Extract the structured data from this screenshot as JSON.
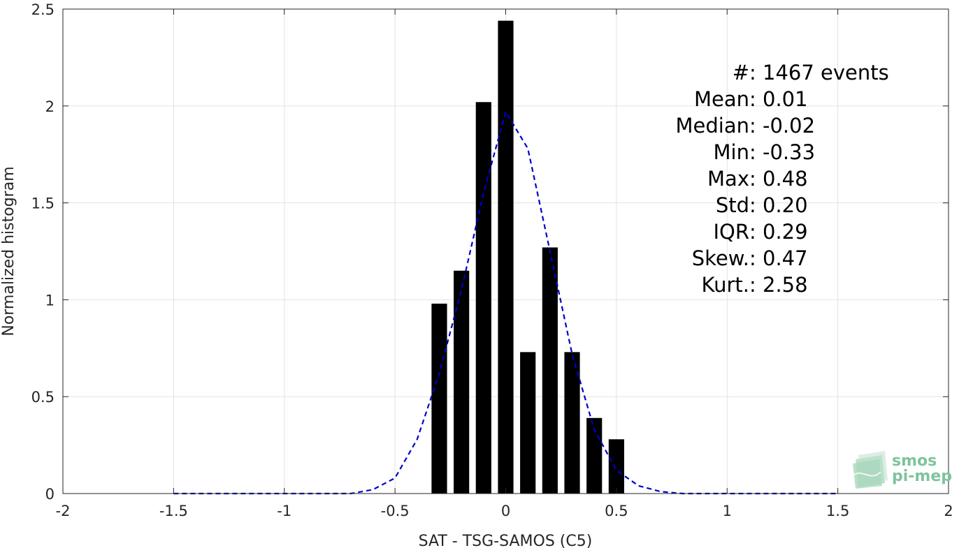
{
  "chart_data": {
    "type": "bar",
    "title": "",
    "xlabel": "SAT - TSG-SAMOS (C5)",
    "ylabel": "Normalized histogram",
    "xlim": [
      -2,
      2
    ],
    "ylim": [
      0,
      2.5
    ],
    "grid": true,
    "x_ticks": [
      -2,
      -1.5,
      -1,
      -0.5,
      0,
      0.5,
      1,
      1.5,
      2
    ],
    "x_tick_labels": [
      "-2",
      "-1.5",
      "-1",
      "-0.5",
      "0",
      "0.5",
      "1",
      "1.5",
      "2"
    ],
    "y_ticks": [
      0,
      0.5,
      1,
      1.5,
      2,
      2.5
    ],
    "y_tick_labels": [
      "0",
      "0.5",
      "1",
      "1.5",
      "2",
      "2.5"
    ],
    "bar_color": "#000000",
    "bar_width": 0.07,
    "bars": {
      "x": [
        -0.3,
        -0.2,
        -0.1,
        0.0,
        0.1,
        0.2,
        0.3,
        0.4,
        0.5
      ],
      "values": [
        0.98,
        1.15,
        2.02,
        2.44,
        0.73,
        1.27,
        0.73,
        0.39,
        0.28
      ]
    },
    "fit_curve": {
      "style": "dashed",
      "color": "#0000cc",
      "x": [
        -1.5,
        -1.0,
        -0.7,
        -0.6,
        -0.5,
        -0.4,
        -0.3,
        -0.2,
        -0.1,
        0.0,
        0.1,
        0.2,
        0.3,
        0.4,
        0.5,
        0.6,
        0.7,
        0.8,
        1.0,
        1.5
      ],
      "y": [
        0.0,
        0.0,
        0.0,
        0.02,
        0.08,
        0.28,
        0.62,
        1.05,
        1.55,
        1.97,
        1.78,
        1.25,
        0.72,
        0.33,
        0.12,
        0.04,
        0.01,
        0.0,
        0.0,
        0.0
      ]
    },
    "annotations": [
      {
        "label": "#  ",
        "value": ": 1467 events"
      },
      {
        "label": "Mean ",
        "value": ": 0.01"
      },
      {
        "label": "Median ",
        "value": ": -0.02"
      },
      {
        "label": "Min ",
        "value": ": -0.33"
      },
      {
        "label": "Max ",
        "value": ": 0.48"
      },
      {
        "label": "Std ",
        "value": ": 0.20"
      },
      {
        "label": "IQR ",
        "value": ": 0.29"
      },
      {
        "label": "Skew. ",
        "value": ": 0.47"
      },
      {
        "label": "Kurt. ",
        "value": ": 2.58"
      }
    ]
  },
  "logo": {
    "line1": "smos",
    "line2": "pi-mep",
    "color": "#7fc39d"
  }
}
